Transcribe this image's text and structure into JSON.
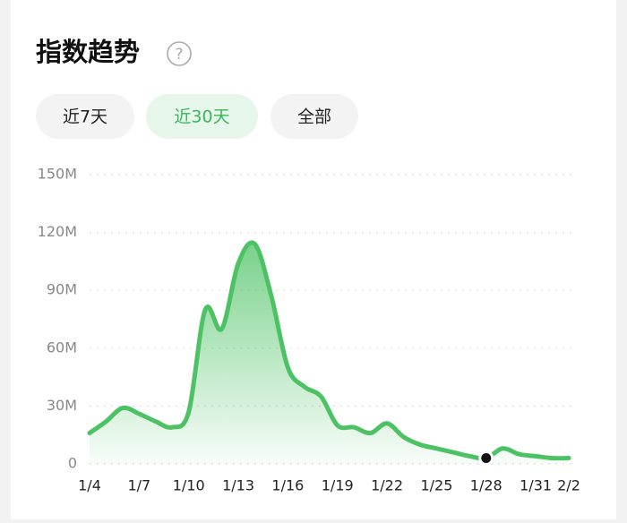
{
  "header": {
    "title": "指数趋势",
    "help": "?"
  },
  "tabs": {
    "items": [
      "近7天",
      "近30天",
      "全部"
    ],
    "active": "近30天"
  },
  "chart_data": {
    "type": "area",
    "categories": [
      "1/4",
      null,
      null,
      "1/7",
      null,
      null,
      "1/10",
      null,
      null,
      "1/13",
      null,
      null,
      "1/16",
      null,
      null,
      "1/19",
      null,
      null,
      "1/22",
      null,
      null,
      "1/25",
      null,
      null,
      "1/28",
      null,
      null,
      "1/31",
      null,
      "2/2"
    ],
    "values": [
      16,
      22,
      29,
      26,
      22,
      19,
      27,
      80,
      70,
      104,
      114,
      87,
      50,
      40,
      35,
      20,
      19,
      16,
      21,
      14,
      10,
      8,
      6,
      4,
      3,
      8,
      5,
      4,
      3,
      3
    ],
    "color": "#4cc264",
    "ylim": [
      0,
      150
    ],
    "yticks": [
      0,
      {
        "value": 30,
        "label": "30M"
      },
      {
        "value": 60,
        "label": "60M"
      },
      {
        "value": 90,
        "label": "90M"
      },
      {
        "value": 120,
        "label": "120M"
      },
      {
        "value": 150,
        "label": "150M"
      }
    ],
    "grid": true,
    "highlight_category": "1/28"
  }
}
